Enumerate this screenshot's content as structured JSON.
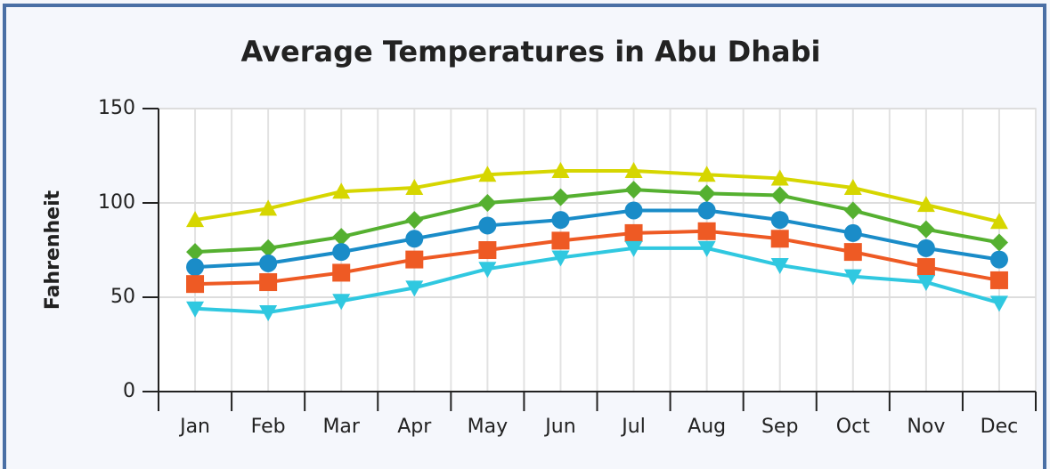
{
  "chart_data": {
    "type": "line",
    "title": "Average Temperatures in Abu Dhabi",
    "ylabel": "Fahrenheit",
    "categories": [
      "Jan",
      "Feb",
      "Mar",
      "Apr",
      "May",
      "Jun",
      "Jul",
      "Aug",
      "Sep",
      "Oct",
      "Nov",
      "Dec"
    ],
    "series": [
      {
        "color": "#d6d600",
        "marker": "triangle-up",
        "values": [
          91,
          97,
          106,
          108,
          115,
          117,
          117,
          115,
          113,
          108,
          99,
          90
        ]
      },
      {
        "color": "#55b030",
        "marker": "diamond",
        "values": [
          74,
          76,
          82,
          91,
          100,
          103,
          107,
          105,
          104,
          96,
          86,
          79
        ]
      },
      {
        "color": "#1a8cc8",
        "marker": "circle",
        "values": [
          66,
          68,
          74,
          81,
          88,
          91,
          96,
          96,
          91,
          84,
          76,
          70
        ]
      },
      {
        "color": "#ee5a24",
        "marker": "square",
        "values": [
          57,
          58,
          63,
          70,
          75,
          80,
          84,
          85,
          81,
          74,
          66,
          59
        ]
      },
      {
        "color": "#30c8e0",
        "marker": "triangle-down",
        "values": [
          44,
          42,
          48,
          55,
          65,
          71,
          76,
          76,
          67,
          61,
          58,
          47
        ]
      }
    ],
    "ylim": [
      0,
      150
    ],
    "yticks": [
      0,
      50,
      100,
      150
    ],
    "grid": true
  }
}
